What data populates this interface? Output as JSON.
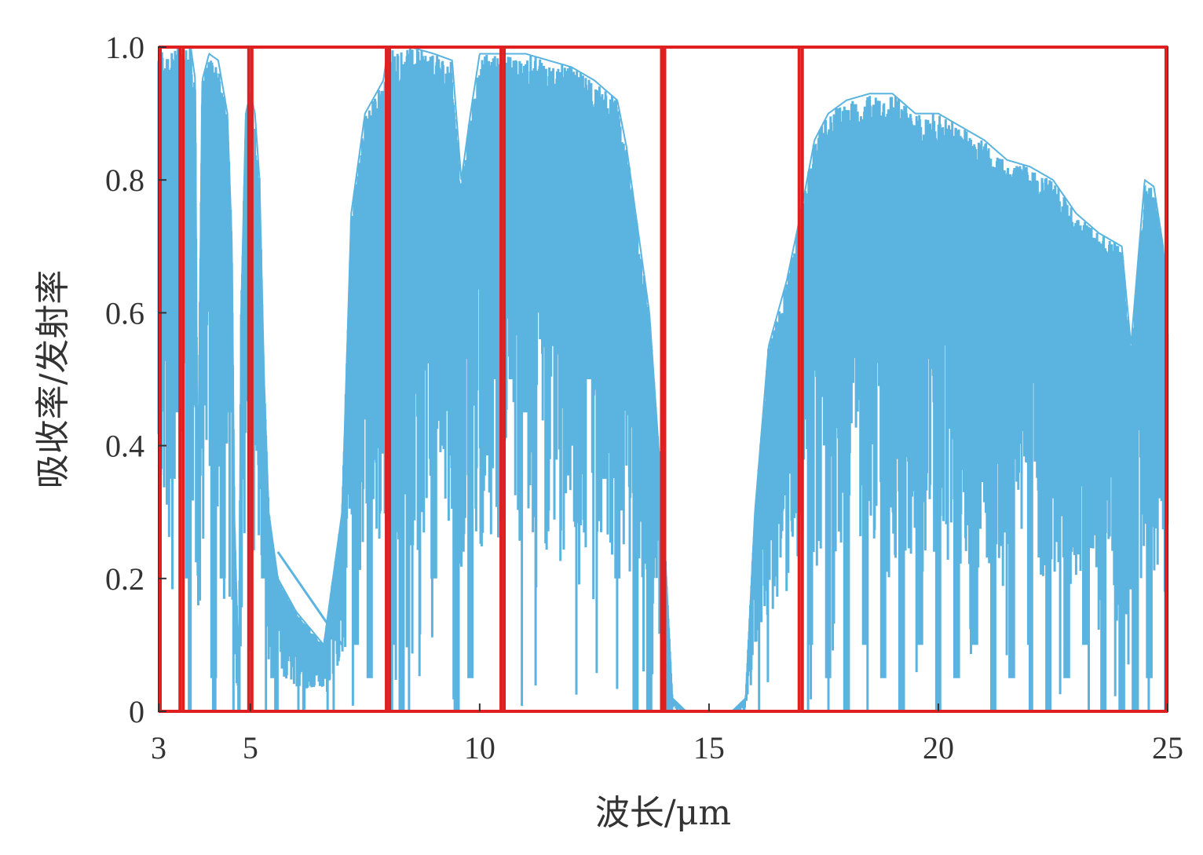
{
  "chart_data": {
    "type": "area",
    "xlabel": "波长/μm",
    "ylabel": "吸收率/发射率",
    "xlim": [
      3,
      25
    ],
    "ylim": [
      0,
      1
    ],
    "x_ticks": [
      {
        "value": 3,
        "label": "3"
      },
      {
        "value": 5,
        "label": "5"
      },
      {
        "value": 10,
        "label": "10"
      },
      {
        "value": 15,
        "label": "15"
      },
      {
        "value": 20,
        "label": "20"
      },
      {
        "value": 25,
        "label": "25"
      }
    ],
    "y_ticks": [
      {
        "value": 0,
        "label": "0"
      },
      {
        "value": 0.2,
        "label": "0.2"
      },
      {
        "value": 0.4,
        "label": "0.4"
      },
      {
        "value": 0.6,
        "label": "0.6"
      },
      {
        "value": 0.8,
        "label": "0.8"
      },
      {
        "value": 1.0,
        "label": "1.0"
      }
    ],
    "series": [
      {
        "color": "#5bb4e0",
        "style": "dense absorption spectrum, filled by many line spikes",
        "envelope": [
          [
            3.0,
            1.0
          ],
          [
            3.3,
            1.0
          ],
          [
            3.5,
            1.0
          ],
          [
            3.7,
            1.0
          ],
          [
            3.8,
            0.95
          ],
          [
            3.85,
            0.3
          ],
          [
            3.95,
            0.95
          ],
          [
            4.1,
            0.99
          ],
          [
            4.3,
            0.98
          ],
          [
            4.5,
            0.9
          ],
          [
            4.6,
            0.7
          ],
          [
            4.65,
            0.3
          ],
          [
            4.75,
            0.05
          ],
          [
            4.8,
            0.6
          ],
          [
            4.9,
            0.9
          ],
          [
            5.0,
            0.93
          ],
          [
            5.1,
            0.9
          ],
          [
            5.2,
            0.8
          ],
          [
            5.3,
            0.5
          ],
          [
            5.4,
            0.3
          ],
          [
            5.6,
            0.2
          ],
          [
            6.0,
            0.15
          ],
          [
            6.6,
            0.1
          ],
          [
            7.0,
            0.3
          ],
          [
            7.2,
            0.75
          ],
          [
            7.5,
            0.9
          ],
          [
            7.9,
            0.95
          ],
          [
            8.0,
            1.0
          ],
          [
            8.5,
            1.0
          ],
          [
            9.0,
            0.99
          ],
          [
            9.4,
            0.98
          ],
          [
            9.6,
            0.8
          ],
          [
            9.8,
            0.9
          ],
          [
            10.0,
            0.99
          ],
          [
            10.5,
            0.99
          ],
          [
            11.0,
            0.99
          ],
          [
            11.5,
            0.98
          ],
          [
            12.0,
            0.97
          ],
          [
            12.5,
            0.95
          ],
          [
            13.0,
            0.92
          ],
          [
            13.2,
            0.85
          ],
          [
            13.4,
            0.75
          ],
          [
            13.7,
            0.6
          ],
          [
            14.0,
            0.3
          ],
          [
            14.2,
            0.02
          ],
          [
            14.5,
            0.0
          ],
          [
            15.0,
            0.0
          ],
          [
            15.5,
            0.0
          ],
          [
            15.8,
            0.02
          ],
          [
            16.0,
            0.3
          ],
          [
            16.3,
            0.55
          ],
          [
            16.7,
            0.65
          ],
          [
            17.0,
            0.75
          ],
          [
            17.3,
            0.86
          ],
          [
            17.6,
            0.9
          ],
          [
            18.0,
            0.92
          ],
          [
            18.5,
            0.93
          ],
          [
            19.0,
            0.93
          ],
          [
            19.5,
            0.9
          ],
          [
            20.0,
            0.9
          ],
          [
            20.5,
            0.88
          ],
          [
            21.0,
            0.86
          ],
          [
            21.5,
            0.83
          ],
          [
            22.0,
            0.82
          ],
          [
            22.5,
            0.8
          ],
          [
            23.0,
            0.75
          ],
          [
            23.5,
            0.72
          ],
          [
            24.0,
            0.7
          ],
          [
            24.2,
            0.55
          ],
          [
            24.5,
            0.8
          ],
          [
            24.7,
            0.79
          ],
          [
            24.9,
            0.7
          ],
          [
            25.0,
            0.6
          ]
        ],
        "dips": [
          [
            3.3,
            0.35
          ],
          [
            3.4,
            0.45
          ],
          [
            3.55,
            0.6
          ],
          [
            3.6,
            0.2
          ],
          [
            3.65,
            0.0
          ],
          [
            3.75,
            0.5
          ],
          [
            4.2,
            0.05
          ],
          [
            4.4,
            0.2
          ],
          [
            4.55,
            0.45
          ],
          [
            5.3,
            0.2
          ],
          [
            5.5,
            0.05
          ],
          [
            7.3,
            0.1
          ],
          [
            7.6,
            0.05
          ],
          [
            8.1,
            0.1
          ],
          [
            8.3,
            0.0
          ],
          [
            8.5,
            0.25
          ],
          [
            8.7,
            0.3
          ],
          [
            9.0,
            0.2
          ],
          [
            9.2,
            0.4
          ],
          [
            9.5,
            0.0
          ],
          [
            9.8,
            0.05
          ],
          [
            10.3,
            0.5
          ],
          [
            10.7,
            0.5
          ],
          [
            11.0,
            0.45
          ],
          [
            11.3,
            0.6
          ],
          [
            11.6,
            0.55
          ],
          [
            12.0,
            0.4
          ],
          [
            12.4,
            0.5
          ],
          [
            12.7,
            0.35
          ],
          [
            13.0,
            0.2
          ],
          [
            13.4,
            0.0
          ],
          [
            13.7,
            0.0
          ],
          [
            17.2,
            0.1
          ],
          [
            17.6,
            0.05
          ],
          [
            18.0,
            0.0
          ],
          [
            18.4,
            0.1
          ],
          [
            18.8,
            0.05
          ],
          [
            19.2,
            0.0
          ],
          [
            19.6,
            0.1
          ],
          [
            20.0,
            0.0
          ],
          [
            20.4,
            0.05
          ],
          [
            20.8,
            0.1
          ],
          [
            21.2,
            0.0
          ],
          [
            21.6,
            0.05
          ],
          [
            22.0,
            0.1
          ],
          [
            22.4,
            0.0
          ],
          [
            22.8,
            0.05
          ],
          [
            23.2,
            0.1
          ],
          [
            23.6,
            0.0
          ],
          [
            24.0,
            0.0
          ],
          [
            24.3,
            0.0
          ],
          [
            24.6,
            0.05
          ]
        ],
        "line_segment": [
          [
            5.6,
            0.24
          ],
          [
            7.0,
            0.1
          ]
        ]
      }
    ],
    "highlight_boxes": [
      {
        "x0": 3.0,
        "x1": 3.5,
        "y0": 0,
        "y1": 1.0,
        "color": "#e02020"
      },
      {
        "x0": 3.5,
        "x1": 5.0,
        "y0": 0,
        "y1": 1.0,
        "color": "#e02020"
      },
      {
        "x0": 5.0,
        "x1": 8.0,
        "y0": 0,
        "y1": 1.0,
        "color": "#e02020"
      },
      {
        "x0": 8.0,
        "x1": 10.5,
        "y0": 0,
        "y1": 1.0,
        "color": "#e02020"
      },
      {
        "x0": 10.5,
        "x1": 14.0,
        "y0": 0,
        "y1": 1.0,
        "color": "#e02020"
      },
      {
        "x0": 14.0,
        "x1": 17.0,
        "y0": 0,
        "y1": 1.0,
        "color": "#e02020"
      },
      {
        "x0": 17.0,
        "x1": 25.0,
        "y0": 0,
        "y1": 1.0,
        "color": "#e02020"
      }
    ],
    "frame_color": "#333333",
    "grid": false,
    "legend": "none"
  }
}
